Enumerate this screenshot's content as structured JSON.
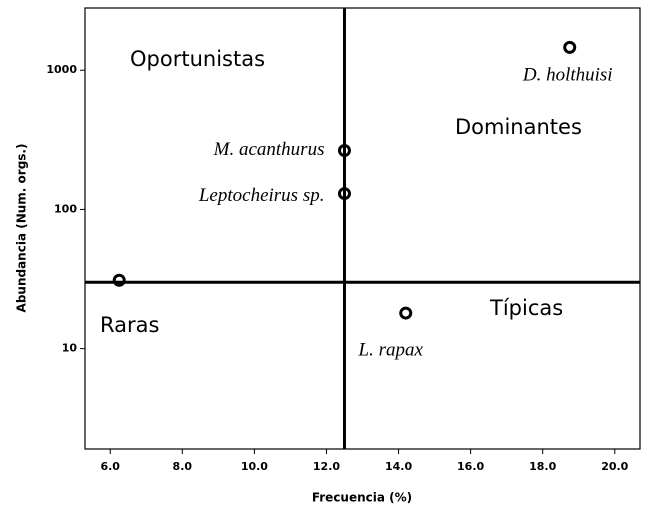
{
  "chart_data": {
    "type": "scatter",
    "x_label": "Frecuencia (%)",
    "y_label": "Abundancia (Num. orgs.)",
    "x": [
      18.75,
      12.5,
      12.5,
      6.25,
      14.2
    ],
    "values": [
      1460,
      265,
      130,
      31,
      18
    ],
    "point_labels": [
      "D. holthuisi",
      "M. acanthurus",
      "Leptocheirus sp.",
      null,
      "L. rapax"
    ],
    "quadrant_labels": [
      "Oportunistas",
      "Dominantes",
      "Raras",
      "Típicas"
    ],
    "vline": 12.5,
    "hline": 30,
    "xlim": [
      5.3,
      20.7
    ],
    "xticks": [
      {
        "value": 6,
        "label": "6.0"
      },
      {
        "value": 8,
        "label": "8.0"
      },
      {
        "value": 10,
        "label": "10.0"
      },
      {
        "value": 12,
        "label": "12.0"
      },
      {
        "value": 14,
        "label": "14.0"
      },
      {
        "value": 16,
        "label": "16.0"
      },
      {
        "value": 18,
        "label": "18.0"
      },
      {
        "value": 20,
        "label": "20.0"
      }
    ],
    "ylim": [
      1.9,
      2800
    ],
    "ylog": true,
    "yticks": [
      10,
      100,
      1000
    ],
    "color": "#000000"
  }
}
